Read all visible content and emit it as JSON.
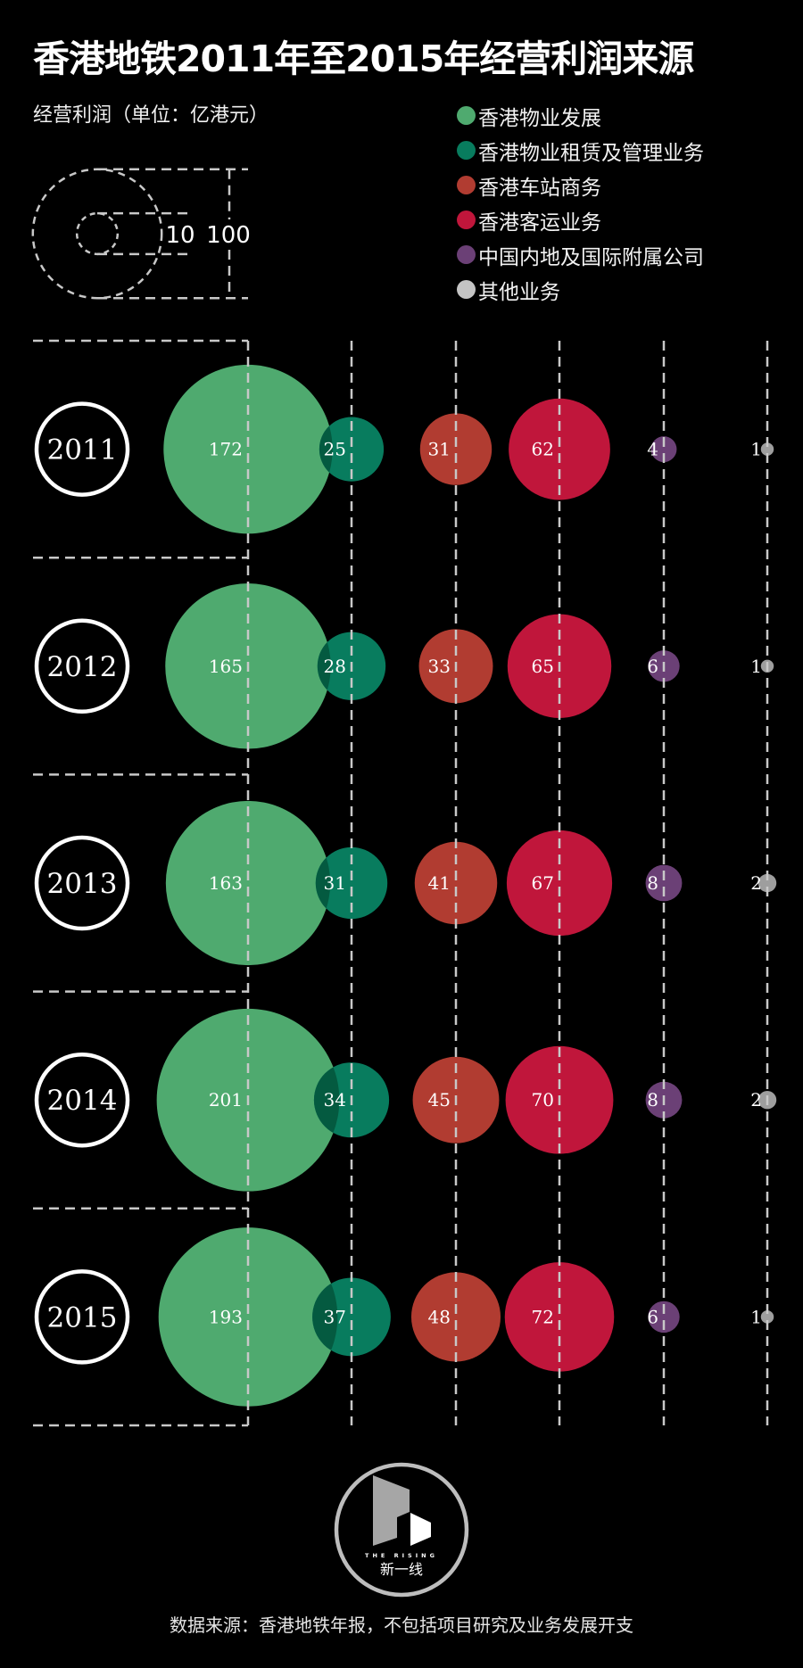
{
  "title": "香港地铁2011年至2015年经营利润来源",
  "unit_label": "经营利润（单位：亿港元）",
  "size_legend": {
    "small_label": "10",
    "large_label": "100",
    "small_value": 10,
    "large_value": 100
  },
  "legend": [
    {
      "label": "香港物业发展",
      "color": "#4faa6f"
    },
    {
      "label": "香港物业租赁及管理业务",
      "color": "#087c5e"
    },
    {
      "label": "香港车站商务",
      "color": "#b13c31"
    },
    {
      "label": "香港客运业务",
      "color": "#c0163b"
    },
    {
      "label": "中国内地及国际附属公司",
      "color": "#6b4076"
    },
    {
      "label": "其他业务",
      "color": "#c4c4c4"
    }
  ],
  "chart_data": {
    "type": "bubble",
    "title": "香港地铁2011年至2015年经营利润来源",
    "unit": "亿港元",
    "categories": [
      "香港物业发展",
      "香港物业租赁及管理业务",
      "香港车站商务",
      "香港客运业务",
      "中国内地及国际附属公司",
      "其他业务"
    ],
    "colors": [
      "#4faa6f",
      "#087c5e",
      "#b13c31",
      "#c0163b",
      "#6b4076",
      "#9e9e9e"
    ],
    "years": [
      "2011",
      "2012",
      "2013",
      "2014",
      "2015"
    ],
    "rows": [
      {
        "year": "2011",
        "values": [
          172,
          25,
          31,
          62,
          4,
          1
        ]
      },
      {
        "year": "2012",
        "values": [
          165,
          28,
          33,
          65,
          6,
          1
        ]
      },
      {
        "year": "2013",
        "values": [
          163,
          31,
          41,
          67,
          8,
          2
        ]
      },
      {
        "year": "2014",
        "values": [
          201,
          34,
          45,
          70,
          8,
          2
        ]
      },
      {
        "year": "2015",
        "values": [
          193,
          37,
          48,
          72,
          6,
          1
        ]
      }
    ],
    "size_encoding": "area proportional to value",
    "legend_position": "top-right"
  },
  "logo": {
    "brand_en": "THE RISING",
    "brand_cn": "新一线"
  },
  "footer": "数据来源：香港地铁年报，不包括项目研究及业务发展开支"
}
